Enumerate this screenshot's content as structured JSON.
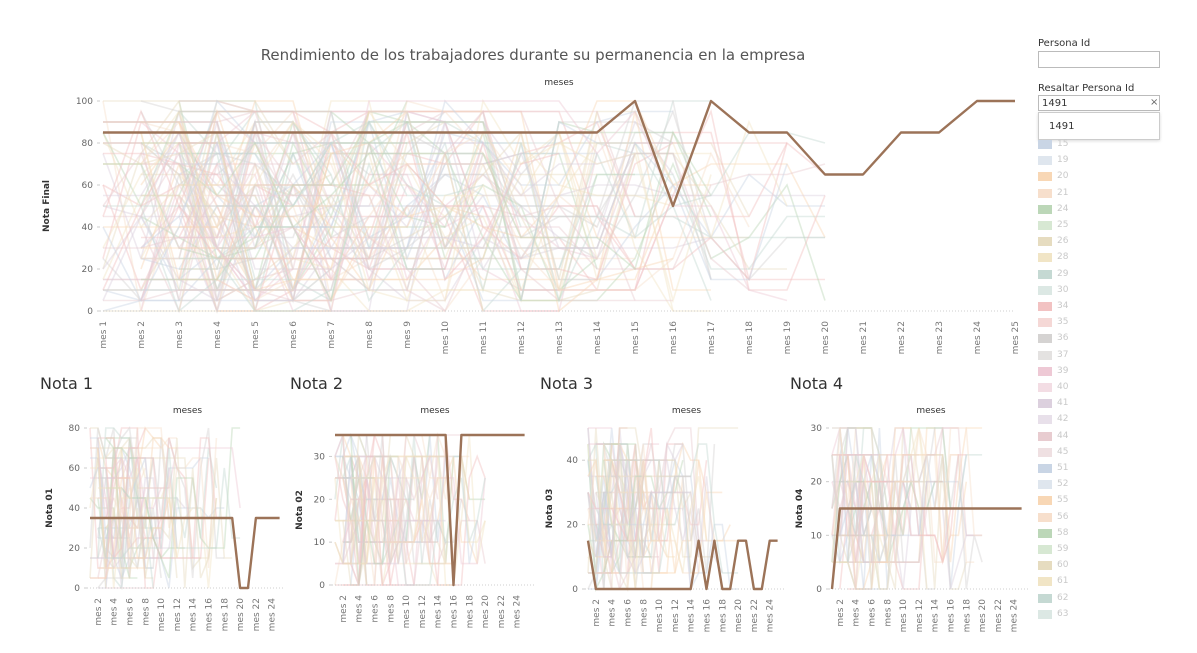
{
  "title": "Rendimiento de los trabajadores  durante su permanencia en la empresa",
  "filter": {
    "label": "Persona Id",
    "value": ""
  },
  "highlight": {
    "label": "Resaltar Persona Id",
    "value": "1491",
    "clear_symbol": "×",
    "options": [
      "1491"
    ]
  },
  "legend": {
    "items": [
      {
        "label": "15",
        "color": "#c9d5e5"
      },
      {
        "label": "19",
        "color": "#dfe6ee"
      },
      {
        "label": "20",
        "color": "#f8d7b5"
      },
      {
        "label": "21",
        "color": "#f7dfcc"
      },
      {
        "label": "24",
        "color": "#bcd7b8"
      },
      {
        "label": "25",
        "color": "#d7e8d3"
      },
      {
        "label": "26",
        "color": "#e6dcc0"
      },
      {
        "label": "28",
        "color": "#f1e5c6"
      },
      {
        "label": "29",
        "color": "#c5d9d3"
      },
      {
        "label": "30",
        "color": "#dce8e4"
      },
      {
        "label": "34",
        "color": "#f2c2c2"
      },
      {
        "label": "35",
        "color": "#f5d8d6"
      },
      {
        "label": "36",
        "color": "#d5d3d2"
      },
      {
        "label": "37",
        "color": "#e4e2e1"
      },
      {
        "label": "39",
        "color": "#eec9d5"
      },
      {
        "label": "40",
        "color": "#f3dde4"
      },
      {
        "label": "41",
        "color": "#dcd0de"
      },
      {
        "label": "42",
        "color": "#e8e0ea"
      },
      {
        "label": "44",
        "color": "#e8ccd0"
      },
      {
        "label": "45",
        "color": "#efe0e2"
      },
      {
        "label": "51",
        "color": "#c9d5e5"
      },
      {
        "label": "52",
        "color": "#dfe6ee"
      },
      {
        "label": "55",
        "color": "#f8d7b5"
      },
      {
        "label": "56",
        "color": "#f7dfcc"
      },
      {
        "label": "58",
        "color": "#bcd7b8"
      },
      {
        "label": "59",
        "color": "#d7e8d3"
      },
      {
        "label": "60",
        "color": "#e6dcc0"
      },
      {
        "label": "61",
        "color": "#f1e5c6"
      },
      {
        "label": "62",
        "color": "#c5d9d3"
      },
      {
        "label": "63",
        "color": "#dce8e4"
      }
    ]
  },
  "chart_data": [
    {
      "id": "main",
      "type": "line",
      "title": "Rendimiento de los trabajadores  durante su permanencia en la empresa",
      "xlabel": "meses",
      "ylabel": "Nota Final",
      "categories": [
        "mes 1",
        "mes 2",
        "mes 3",
        "mes 4",
        "mes 5",
        "mes 6",
        "mes 7",
        "mes 8",
        "mes 9",
        "mes 10",
        "mes 11",
        "mes 12",
        "mes 13",
        "mes 14",
        "mes 15",
        "mes 16",
        "mes 17",
        "mes 18",
        "mes 19",
        "mes 20",
        "mes 21",
        "mes 22",
        "mes 23",
        "mes 24",
        "mes 25"
      ],
      "yticks": [
        0,
        20,
        40,
        60,
        80,
        100
      ],
      "ylim": [
        0,
        100
      ],
      "highlight_color": "#9c7358",
      "highlight": [
        85,
        85,
        85,
        85,
        85,
        85,
        85,
        85,
        85,
        85,
        85,
        85,
        85,
        85,
        100,
        50,
        100,
        85,
        85,
        65,
        65,
        85,
        85,
        100,
        100
      ],
      "grid": false
    },
    {
      "id": "nota1",
      "type": "line",
      "title": "Nota 1",
      "xlabel": "meses",
      "ylabel": "Nota 01",
      "categories": [
        "mes 1",
        "mes 2",
        "mes 3",
        "mes 4",
        "mes 5",
        "mes 6",
        "mes 7",
        "mes 8",
        "mes 9",
        "mes 10",
        "mes 11",
        "mes 12",
        "mes 13",
        "mes 14",
        "mes 15",
        "mes 16",
        "mes 17",
        "mes 18",
        "mes 19",
        "mes 20",
        "mes 21",
        "mes 22",
        "mes 23",
        "mes 24",
        "mes 25"
      ],
      "tick_labels": [
        "mes 2",
        "mes 4",
        "mes 6",
        "mes 8",
        "mes 10",
        "mes 12",
        "mes 14",
        "mes 16",
        "mes 18",
        "mes 20",
        "mes 22",
        "mes 24"
      ],
      "yticks": [
        0,
        20,
        40,
        60,
        80
      ],
      "ylim": [
        0,
        80
      ],
      "highlight_color": "#9c7358",
      "highlight": [
        35,
        35,
        35,
        35,
        35,
        35,
        35,
        35,
        35,
        35,
        35,
        35,
        35,
        35,
        35,
        35,
        35,
        35,
        35,
        0,
        0,
        35,
        35,
        35,
        35
      ],
      "grid": false
    },
    {
      "id": "nota2",
      "type": "line",
      "title": "Nota 2",
      "xlabel": "meses",
      "ylabel": "Nota 02",
      "categories": [
        "mes 1",
        "mes 2",
        "mes 3",
        "mes 4",
        "mes 5",
        "mes 6",
        "mes 7",
        "mes 8",
        "mes 9",
        "mes 10",
        "mes 11",
        "mes 12",
        "mes 13",
        "mes 14",
        "mes 15",
        "mes 16",
        "mes 17",
        "mes 18",
        "mes 19",
        "mes 20",
        "mes 21",
        "mes 22",
        "mes 23",
        "mes 24",
        "mes 25"
      ],
      "tick_labels": [
        "mes 2",
        "mes 4",
        "mes 6",
        "mes 8",
        "mes 10",
        "mes 12",
        "mes 14",
        "mes 16",
        "mes 18",
        "mes 20",
        "mes 22",
        "mes 24"
      ],
      "yticks": [
        0,
        10,
        20,
        30
      ],
      "ylim": [
        0,
        35
      ],
      "highlight_color": "#9c7358",
      "highlight": [
        35,
        35,
        35,
        35,
        35,
        35,
        35,
        35,
        35,
        35,
        35,
        35,
        35,
        35,
        35,
        0,
        35,
        35,
        35,
        35,
        35,
        35,
        35,
        35,
        35
      ],
      "grid": false
    },
    {
      "id": "nota3",
      "type": "line",
      "title": "Nota 3",
      "xlabel": "meses",
      "ylabel": "Nota 03",
      "categories": [
        "mes 1",
        "mes 2",
        "mes 3",
        "mes 4",
        "mes 5",
        "mes 6",
        "mes 7",
        "mes 8",
        "mes 9",
        "mes 10",
        "mes 11",
        "mes 12",
        "mes 13",
        "mes 14",
        "mes 15",
        "mes 16",
        "mes 17",
        "mes 18",
        "mes 19",
        "mes 20",
        "mes 21",
        "mes 22",
        "mes 23",
        "mes 24",
        "mes 25"
      ],
      "tick_labels": [
        "mes 2",
        "mes 4",
        "mes 6",
        "mes 8",
        "mes 10",
        "mes 12",
        "mes 14",
        "mes 16",
        "mes 18",
        "mes 20",
        "mes 22",
        "mes 24"
      ],
      "yticks": [
        0,
        20,
        40
      ],
      "ylim": [
        0,
        50
      ],
      "highlight_color": "#9c7358",
      "highlight": [
        15,
        0,
        0,
        0,
        0,
        0,
        0,
        0,
        0,
        0,
        0,
        0,
        0,
        0,
        15,
        0,
        15,
        0,
        0,
        15,
        15,
        0,
        0,
        15,
        15
      ],
      "grid": false
    },
    {
      "id": "nota4",
      "type": "line",
      "title": "Nota 4",
      "xlabel": "meses",
      "ylabel": "Nota 04",
      "categories": [
        "mes 1",
        "mes 2",
        "mes 3",
        "mes 4",
        "mes 5",
        "mes 6",
        "mes 7",
        "mes 8",
        "mes 9",
        "mes 10",
        "mes 11",
        "mes 12",
        "mes 13",
        "mes 14",
        "mes 15",
        "mes 16",
        "mes 17",
        "mes 18",
        "mes 19",
        "mes 20",
        "mes 21",
        "mes 22",
        "mes 23",
        "mes 24",
        "mes 25"
      ],
      "tick_labels": [
        "mes 2",
        "mes 4",
        "mes 6",
        "mes 8",
        "mes 10",
        "mes 12",
        "mes 14",
        "mes 16",
        "mes 18",
        "mes 20",
        "mes 22",
        "mes 24"
      ],
      "yticks": [
        0,
        10,
        20,
        30
      ],
      "ylim": [
        0,
        30
      ],
      "highlight_color": "#9c7358",
      "highlight": [
        0,
        15,
        15,
        15,
        15,
        15,
        15,
        15,
        15,
        15,
        15,
        15,
        15,
        15,
        15,
        15,
        15,
        15,
        15,
        15,
        15,
        15,
        15,
        15,
        15
      ],
      "grid": false
    }
  ],
  "background_colors": [
    "#c9d5e5",
    "#f8d7b5",
    "#bcd7b8",
    "#e6dcc0",
    "#f2c2c2",
    "#d5d3d2",
    "#eec9d5",
    "#dcd0de",
    "#e8ccd0",
    "#c5d9d3",
    "#f1e5c6",
    "#f7dfcc"
  ]
}
